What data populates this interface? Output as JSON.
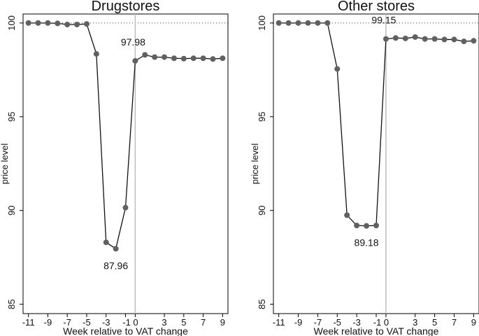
{
  "chart_data": [
    {
      "type": "line",
      "title": "Drugstores",
      "xlabel": "Week relative to VAT change",
      "ylabel": "price level",
      "xlim": [
        -11,
        9
      ],
      "ylim": [
        85,
        100
      ],
      "xticks": [
        "-11",
        "-9",
        "-7",
        "-5",
        "-3",
        "-1 0",
        "3",
        "5",
        "7",
        "9"
      ],
      "yticks": [
        "85",
        "90",
        "95",
        "100"
      ],
      "reference_line_y": 100,
      "event_line_x": 0,
      "x": [
        -11,
        -10,
        -9,
        -8,
        -7,
        -6,
        -5,
        -4,
        -3,
        -2,
        -1,
        0,
        1,
        2,
        3,
        4,
        5,
        6,
        7,
        8,
        9
      ],
      "series": [
        {
          "values": [
            100.0,
            100.0,
            100.0,
            99.98,
            99.92,
            99.92,
            99.95,
            98.35,
            88.3,
            87.96,
            90.15,
            97.98,
            98.3,
            98.18,
            98.18,
            98.12,
            98.1,
            98.12,
            98.12,
            98.08,
            98.12
          ]
        }
      ],
      "annotations": [
        {
          "text": "97.98",
          "x": 0,
          "y": 97.98
        },
        {
          "text": "87.96",
          "x": -2,
          "y": 87.96
        }
      ]
    },
    {
      "type": "line",
      "title": "Other stores",
      "xlabel": "Week relative to VAT change",
      "ylabel": "price level",
      "xlim": [
        -11,
        9
      ],
      "ylim": [
        85,
        100
      ],
      "xticks": [
        "-11",
        "-9",
        "-7",
        "-5",
        "-3",
        "-1 0",
        "3",
        "5",
        "7",
        "9"
      ],
      "yticks": [
        "85",
        "90",
        "95",
        "100"
      ],
      "reference_line_y": 100,
      "event_line_x": 0,
      "x": [
        -11,
        -10,
        -9,
        -8,
        -7,
        -6,
        -5,
        -4,
        -3,
        -2,
        -1,
        0,
        1,
        2,
        3,
        4,
        5,
        6,
        7,
        8,
        9
      ],
      "series": [
        {
          "values": [
            100.0,
            100.0,
            100.0,
            100.0,
            100.0,
            100.0,
            97.55,
            89.75,
            89.2,
            89.18,
            89.2,
            99.15,
            99.2,
            99.18,
            99.25,
            99.15,
            99.15,
            99.12,
            99.12,
            99.02,
            99.05
          ]
        }
      ],
      "annotations": [
        {
          "text": "99.15",
          "x": 0,
          "y": 99.15
        },
        {
          "text": "89.18",
          "x": -2,
          "y": 89.18
        }
      ]
    }
  ]
}
